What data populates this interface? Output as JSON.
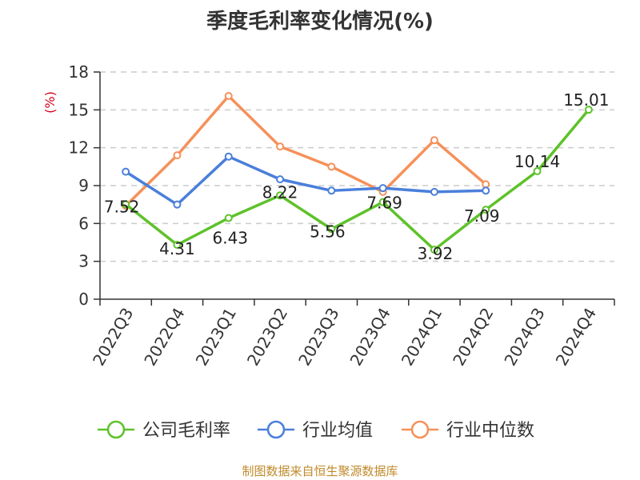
{
  "title": "季度毛利率变化情况(%)",
  "source": "制图数据来自恒生聚源数据库",
  "chart_data": {
    "type": "line",
    "title": "季度毛利率变化情况(%)",
    "ylabel": "(%)",
    "categories": [
      "2022Q3",
      "2022Q4",
      "2023Q1",
      "2023Q2",
      "2023Q3",
      "2023Q4",
      "2024Q1",
      "2024Q2",
      "2024Q3",
      "2024Q4"
    ],
    "ylim": [
      0,
      18
    ],
    "yticks": [
      0,
      3,
      6,
      9,
      12,
      15,
      18
    ],
    "grid": true,
    "legend_position": "bottom",
    "series": [
      {
        "name": "公司毛利率",
        "color": "#5ec22a",
        "values": [
          7.52,
          4.31,
          6.43,
          8.22,
          5.56,
          7.69,
          3.92,
          7.09,
          10.14,
          15.01
        ],
        "labels": [
          "7.52",
          "4.31",
          "6.43",
          "8.22",
          "5.56",
          "7.69",
          "3.92",
          "7.09",
          "10.14",
          "15.01"
        ]
      },
      {
        "name": "行业均值",
        "color": "#4a7fdb",
        "values": [
          10.1,
          7.5,
          11.3,
          9.5,
          8.6,
          8.8,
          8.5,
          8.6,
          null,
          null
        ]
      },
      {
        "name": "行业中位数",
        "color": "#f5915a",
        "values": [
          7.4,
          11.4,
          16.1,
          12.1,
          10.5,
          8.5,
          12.6,
          9.1,
          null,
          null
        ]
      }
    ]
  }
}
